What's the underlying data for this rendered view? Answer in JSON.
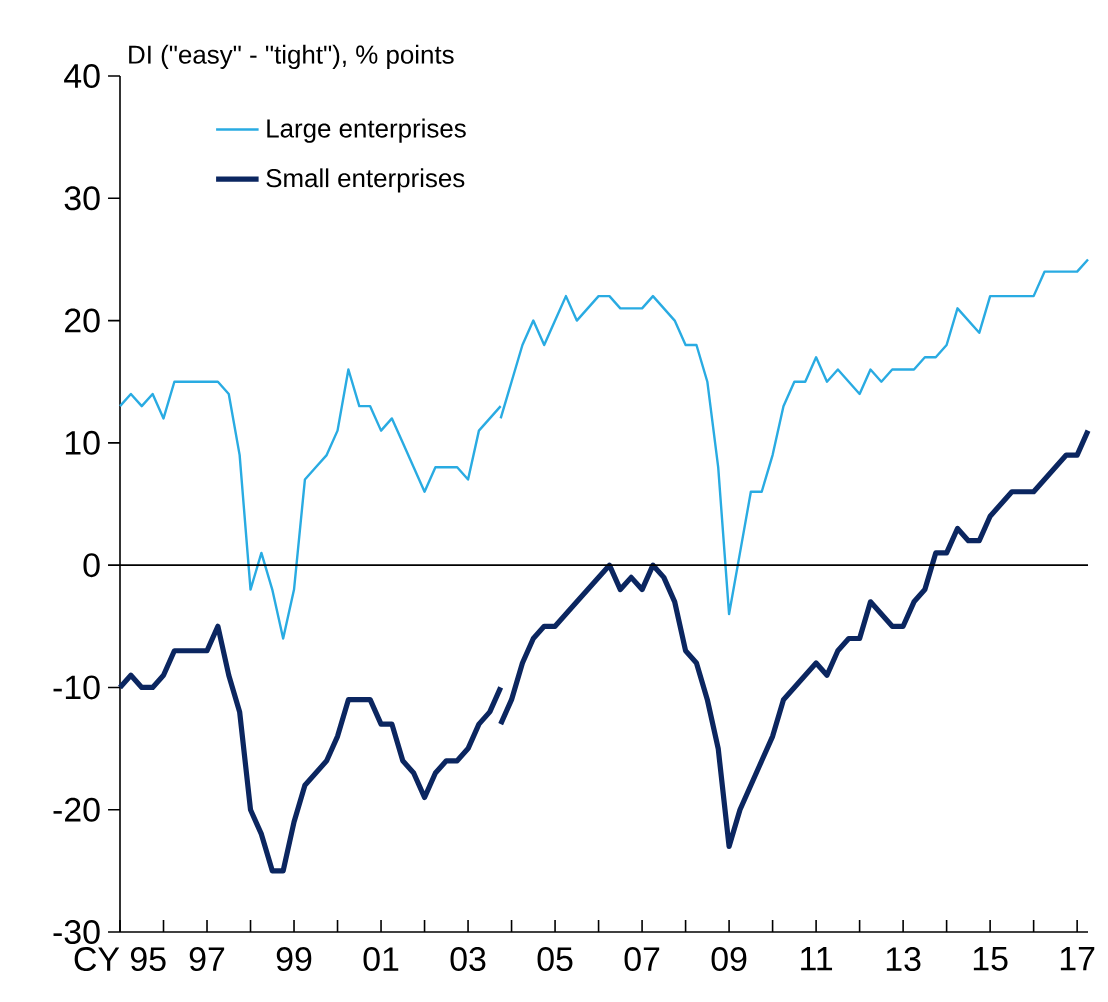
{
  "chart_data": {
    "type": "line",
    "ylabel": "DI (\"easy\" - \"tight\"), % points",
    "xlim": [
      1995,
      2017.25
    ],
    "ylim": [
      -30,
      40
    ],
    "yticks": [
      -30,
      -20,
      -10,
      0,
      10,
      20,
      30,
      40
    ],
    "xticks": [
      {
        "value": 1995,
        "label": "CY 95"
      },
      {
        "value": 1996,
        "label": null
      },
      {
        "value": 1997,
        "label": "97"
      },
      {
        "value": 1998,
        "label": null
      },
      {
        "value": 1999,
        "label": "99"
      },
      {
        "value": 2000,
        "label": null
      },
      {
        "value": 2001,
        "label": "01"
      },
      {
        "value": 2002,
        "label": null
      },
      {
        "value": 2003,
        "label": "03"
      },
      {
        "value": 2004,
        "label": null
      },
      {
        "value": 2005,
        "label": "05"
      },
      {
        "value": 2006,
        "label": null
      },
      {
        "value": 2007,
        "label": "07"
      },
      {
        "value": 2008,
        "label": null
      },
      {
        "value": 2009,
        "label": "09"
      },
      {
        "value": 2010,
        "label": null
      },
      {
        "value": 2011,
        "label": "11"
      },
      {
        "value": 2012,
        "label": null
      },
      {
        "value": 2013,
        "label": "13"
      },
      {
        "value": 2014,
        "label": null
      },
      {
        "value": 2015,
        "label": "15"
      },
      {
        "value": 2016,
        "label": null
      },
      {
        "value": 2017,
        "label": "17"
      }
    ],
    "legend": "top left",
    "grid": false,
    "ref_lines": [
      {
        "axis": "y",
        "value": 0,
        "color": "#000000"
      }
    ],
    "series": [
      {
        "name": "Large enterprises",
        "color": "#29abe2",
        "x": [
          1995,
          1995.25,
          1995.5,
          1995.75,
          1996,
          1996.25,
          1996.5,
          1996.75,
          1997,
          1997.25,
          1997.5,
          1997.75,
          1998,
          1998.25,
          1998.5,
          1998.75,
          1999,
          1999.25,
          1999.5,
          1999.75,
          2000,
          2000.25,
          2000.5,
          2000.75,
          2001,
          2001.25,
          2001.5,
          2001.75,
          2002,
          2002.25,
          2002.5,
          2002.75,
          2003,
          2003.25,
          2003.5,
          2003.75
        ],
        "values": [
          13,
          14,
          13,
          14,
          12,
          15,
          15,
          15,
          15,
          15,
          14,
          9,
          -2,
          1,
          -2,
          -6,
          -2,
          7,
          8,
          9,
          11,
          16,
          13,
          13,
          11,
          12,
          10,
          8,
          6,
          8,
          8,
          8,
          7,
          11,
          12,
          13
        ]
      },
      {
        "name": "Small enterprises",
        "color": "#0b2660",
        "x": [
          1995,
          1995.25,
          1995.5,
          1995.75,
          1996,
          1996.25,
          1996.5,
          1996.75,
          1997,
          1997.25,
          1997.5,
          1997.75,
          1998,
          1998.25,
          1998.5,
          1998.75,
          1999,
          1999.25,
          1999.5,
          1999.75,
          2000,
          2000.25,
          2000.5,
          2000.75,
          2001,
          2001.25,
          2001.5,
          2001.75,
          2002,
          2002.25,
          2002.5,
          2002.75,
          2003,
          2003.25,
          2003.5,
          2003.75
        ],
        "values": [
          -10,
          -9,
          -10,
          -10,
          -9,
          -7,
          -7,
          -7,
          -7,
          -5,
          -9,
          -12,
          -20,
          -22,
          -25,
          -25,
          -21,
          -18,
          -17,
          -16,
          -14,
          -11,
          -11,
          -11,
          -13,
          -13,
          -16,
          -17,
          -19,
          -17,
          -16,
          -16,
          -15,
          -13,
          -12,
          -10
        ]
      },
      {
        "color": "#29abe2",
        "x": [
          2003.75,
          2004,
          2004.25,
          2004.5,
          2004.75,
          2005,
          2005.25,
          2005.5,
          2005.75,
          2006,
          2006.25,
          2006.5,
          2006.75,
          2007,
          2007.25,
          2007.5,
          2007.75,
          2008,
          2008.25,
          2008.5,
          2008.75,
          2009,
          2009.25,
          2009.5,
          2009.75,
          2010,
          2010.25,
          2010.5,
          2010.75,
          2011,
          2011.25,
          2011.5,
          2011.75,
          2012,
          2012.25,
          2012.5,
          2012.75,
          2013,
          2013.25,
          2013.5,
          2013.75,
          2014,
          2014.25,
          2014.5,
          2014.75,
          2015,
          2015.25,
          2015.5,
          2015.75,
          2016,
          2016.25,
          2016.5,
          2016.75,
          2017,
          2017.25
        ],
        "values": [
          12,
          15,
          18,
          20,
          18,
          20,
          22,
          20,
          21,
          22,
          22,
          21,
          21,
          21,
          22,
          21,
          20,
          18,
          18,
          15,
          8,
          -4,
          1,
          6,
          6,
          9,
          13,
          15,
          15,
          17,
          15,
          16,
          15,
          14,
          16,
          15,
          16,
          16,
          16,
          17,
          17,
          18,
          21,
          20,
          19,
          22,
          22,
          22,
          22,
          22,
          24,
          24,
          24,
          24,
          25
        ]
      },
      {
        "color": "#0b2660",
        "x": [
          2003.75,
          2004,
          2004.25,
          2004.5,
          2004.75,
          2005,
          2005.25,
          2005.5,
          2005.75,
          2006,
          2006.25,
          2006.5,
          2006.75,
          2007,
          2007.25,
          2007.5,
          2007.75,
          2008,
          2008.25,
          2008.5,
          2008.75,
          2009,
          2009.25,
          2009.5,
          2009.75,
          2010,
          2010.25,
          2010.5,
          2010.75,
          2011,
          2011.25,
          2011.5,
          2011.75,
          2012,
          2012.25,
          2012.5,
          2012.75,
          2013,
          2013.25,
          2013.5,
          2013.75,
          2014,
          2014.25,
          2014.5,
          2014.75,
          2015,
          2015.25,
          2015.5,
          2015.75,
          2016,
          2016.25,
          2016.5,
          2016.75,
          2017,
          2017.25
        ],
        "values": [
          -13,
          -11,
          -8,
          -6,
          -5,
          -5,
          -4,
          -3,
          -2,
          -1,
          0,
          -2,
          -1,
          -2,
          0,
          -1,
          -3,
          -7,
          -8,
          -11,
          -15,
          -23,
          -20,
          -18,
          -16,
          -14,
          -11,
          -10,
          -9,
          -8,
          -9,
          -7,
          -6,
          -6,
          -3,
          -4,
          -5,
          -5,
          -3,
          -2,
          1,
          1,
          3,
          2,
          2,
          4,
          5,
          6,
          6,
          6,
          7,
          8,
          9,
          9,
          11
        ]
      }
    ]
  }
}
